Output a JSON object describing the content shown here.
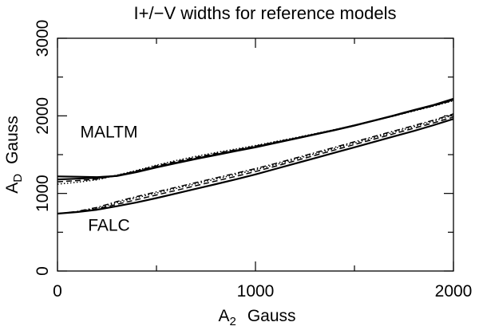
{
  "chart_data": {
    "type": "line",
    "title": "I+/−V widths for reference models",
    "xlabel_main": "A",
    "xlabel_sub": "2",
    "xlabel_unit": "Gauss",
    "ylabel_main": "A",
    "ylabel_sub": "D",
    "ylabel_unit": "Gauss",
    "xlim": [
      0,
      2000
    ],
    "ylim": [
      0,
      3000
    ],
    "x_ticks": [
      0,
      1000,
      2000
    ],
    "y_ticks": [
      0,
      1000,
      2000,
      3000
    ],
    "x_tick_labels": [
      "0",
      "1000",
      "2000"
    ],
    "y_tick_labels": [
      "0",
      "1000",
      "2000",
      "3000"
    ],
    "grid": false,
    "annotations": [
      {
        "text": "MALTM",
        "x": 260,
        "y": 1720
      },
      {
        "text": "FALC",
        "x": 260,
        "y": 520
      }
    ],
    "series": [
      {
        "group": "MALTM",
        "style": "solid",
        "x": [
          0,
          100,
          200,
          300,
          400,
          500,
          600,
          700,
          800,
          900,
          1000,
          1100,
          1200,
          1300,
          1400,
          1500,
          1600,
          1700,
          1800,
          1900,
          2000
        ],
        "y": [
          1220,
          1215,
          1210,
          1225,
          1275,
          1335,
          1390,
          1445,
          1495,
          1545,
          1595,
          1650,
          1705,
          1760,
          1815,
          1875,
          1940,
          2005,
          2075,
          2140,
          2220
        ]
      },
      {
        "group": "MALTM",
        "style": "solid",
        "x": [
          0,
          100,
          200,
          300,
          400,
          500,
          600,
          700,
          800,
          900,
          1000,
          1100,
          1200,
          1300,
          1400,
          1500,
          1600,
          1700,
          1800,
          1900,
          2000
        ],
        "y": [
          1180,
          1190,
          1200,
          1228,
          1280,
          1340,
          1395,
          1450,
          1500,
          1550,
          1600,
          1653,
          1707,
          1762,
          1817,
          1877,
          1940,
          2003,
          2072,
          2137,
          2210
        ]
      },
      {
        "group": "MALTM",
        "style": "dashed",
        "x": [
          0,
          100,
          200,
          300,
          400,
          500,
          600,
          700,
          800,
          900,
          1000,
          1100,
          1200,
          1300,
          1400,
          1500,
          1600,
          1700,
          1800,
          1900,
          2000
        ],
        "y": [
          1150,
          1165,
          1185,
          1232,
          1290,
          1355,
          1412,
          1465,
          1515,
          1562,
          1610,
          1662,
          1713,
          1766,
          1820,
          1878,
          1938,
          2000,
          2066,
          2130,
          2200
        ]
      },
      {
        "group": "MALTM",
        "style": "dotted",
        "x": [
          0,
          100,
          200,
          300,
          400,
          500,
          600,
          700,
          800,
          900,
          1000,
          1100,
          1200,
          1300,
          1400,
          1500,
          1600,
          1700,
          1800,
          1900,
          2000
        ],
        "y": [
          1120,
          1145,
          1175,
          1236,
          1298,
          1365,
          1425,
          1478,
          1528,
          1572,
          1618,
          1668,
          1718,
          1770,
          1823,
          1880,
          1938,
          1998,
          2062,
          2126,
          2195
        ]
      },
      {
        "group": "FALC",
        "style": "solid",
        "x": [
          0,
          100,
          200,
          300,
          400,
          500,
          600,
          700,
          800,
          900,
          1000,
          1100,
          1200,
          1300,
          1400,
          1500,
          1600,
          1700,
          1800,
          1900,
          2000
        ],
        "y": [
          740,
          760,
          790,
          835,
          885,
          940,
          1000,
          1060,
          1120,
          1180,
          1245,
          1315,
          1385,
          1455,
          1525,
          1595,
          1665,
          1735,
          1805,
          1880,
          1960
        ]
      },
      {
        "group": "FALC",
        "style": "dashed",
        "x": [
          0,
          100,
          200,
          300,
          400,
          500,
          600,
          700,
          800,
          900,
          1000,
          1100,
          1200,
          1300,
          1400,
          1500,
          1600,
          1700,
          1800,
          1900,
          2000
        ],
        "y": [
          740,
          762,
          800,
          860,
          920,
          980,
          1040,
          1100,
          1160,
          1220,
          1282,
          1350,
          1420,
          1490,
          1560,
          1630,
          1700,
          1770,
          1840,
          1910,
          1985
        ]
      },
      {
        "group": "FALC",
        "style": "dotted",
        "x": [
          0,
          100,
          200,
          300,
          400,
          500,
          600,
          700,
          800,
          900,
          1000,
          1100,
          1200,
          1300,
          1400,
          1500,
          1600,
          1700,
          1800,
          1900,
          2000
        ],
        "y": [
          740,
          765,
          810,
          880,
          945,
          1005,
          1065,
          1125,
          1185,
          1245,
          1305,
          1370,
          1440,
          1510,
          1580,
          1650,
          1720,
          1790,
          1860,
          1932,
          2010
        ]
      },
      {
        "group": "FALC",
        "style": "dashdot",
        "x": [
          0,
          100,
          200,
          300,
          400,
          500,
          600,
          700,
          800,
          900,
          1000,
          1100,
          1200,
          1300,
          1400,
          1500,
          1600,
          1700,
          1800,
          1900,
          2000
        ],
        "y": [
          740,
          768,
          820,
          895,
          960,
          1020,
          1080,
          1140,
          1200,
          1260,
          1320,
          1385,
          1455,
          1525,
          1595,
          1665,
          1735,
          1805,
          1875,
          1945,
          2025
        ]
      }
    ]
  }
}
